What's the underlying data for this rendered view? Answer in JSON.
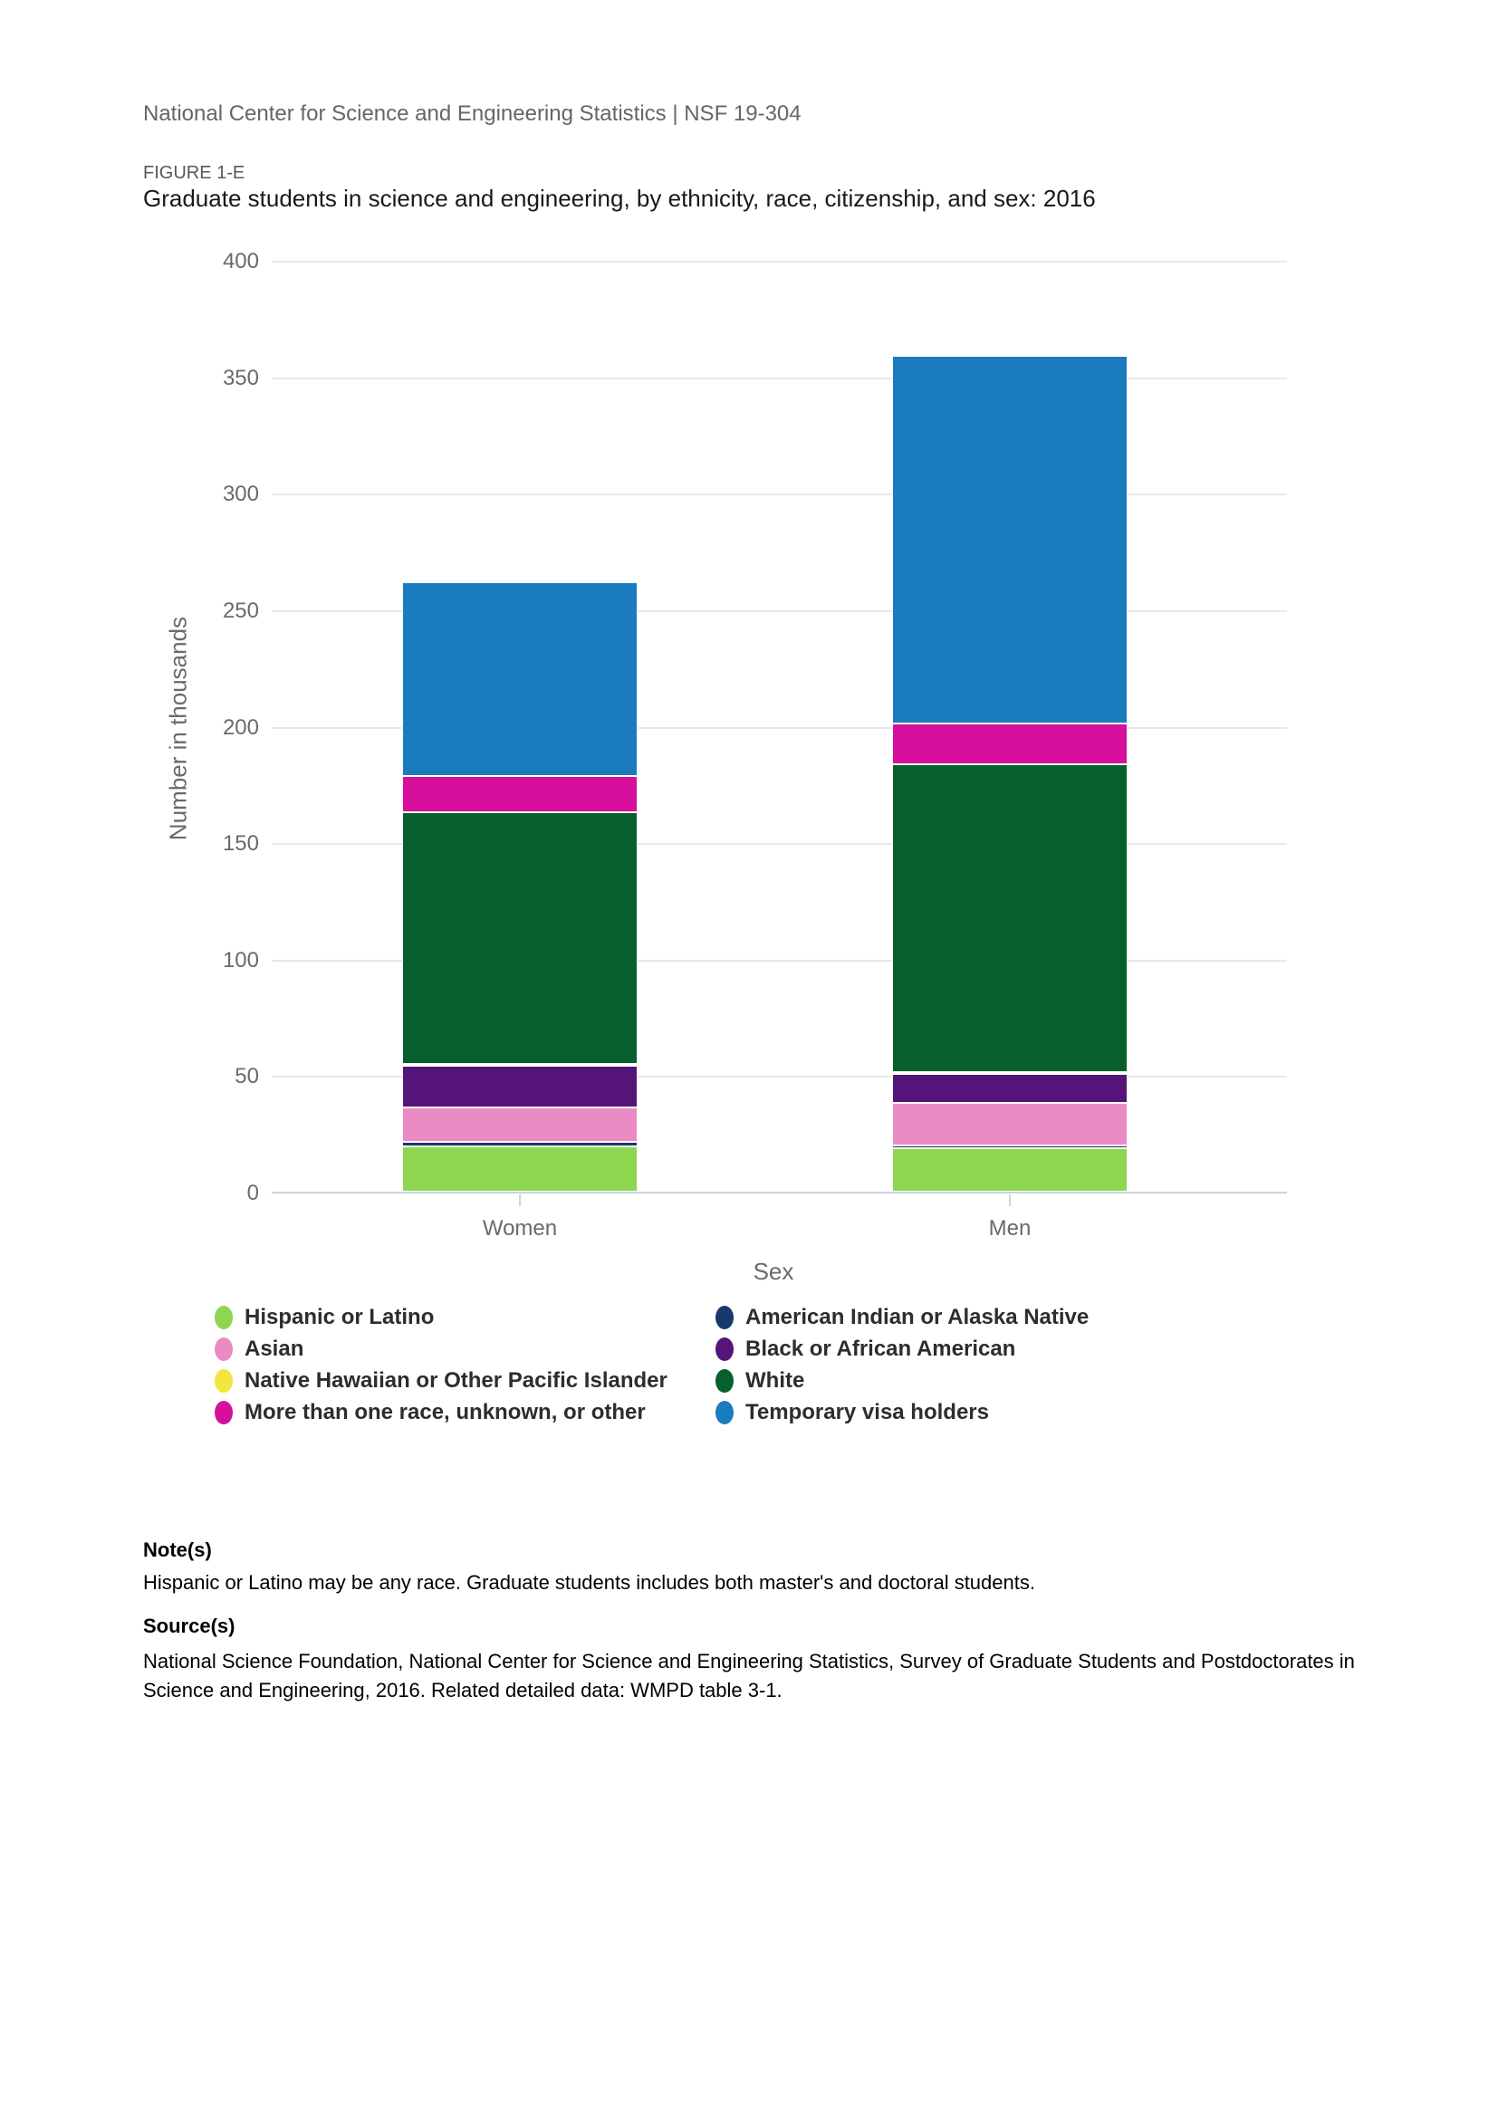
{
  "page": {
    "header": "National Center for Science and Engineering Statistics  |  NSF 19-304",
    "figure_label": "FIGURE 1-E",
    "figure_title": "Graduate students in science and engineering, by ethnicity, race, citizenship, and sex: 2016"
  },
  "chart_data": {
    "type": "bar",
    "stacked": true,
    "title": "Graduate students in science and engineering, by ethnicity, race, citizenship, and sex: 2016",
    "categories": [
      "Women",
      "Men"
    ],
    "xlabel": "Sex",
    "ylabel": "Number in thousands",
    "units": "thousands",
    "ylim": [
      0,
      400
    ],
    "ytick_step": 50,
    "grid": true,
    "legend_position": "bottom",
    "series": [
      {
        "name": "Hispanic or Latino",
        "color": "#8dd750",
        "values": [
          19.5,
          18.5
        ]
      },
      {
        "name": "American Indian or Alaska Native",
        "color": "#17396b",
        "values": [
          1.7,
          1.2
        ]
      },
      {
        "name": "Asian",
        "color": "#ea8bc5",
        "values": [
          15.0,
          18.5
        ]
      },
      {
        "name": "Black or African American",
        "color": "#551478",
        "values": [
          18.0,
          12.5
        ]
      },
      {
        "name": "Native Hawaiian or Other Pacific Islander",
        "color": "#f3e53e",
        "values": [
          0.4,
          0.4
        ]
      },
      {
        "name": "White",
        "color": "#06602d",
        "values": [
          108.0,
          132.0
        ]
      },
      {
        "name": "More than one race, unknown, or other",
        "color": "#d60f9d",
        "values": [
          15.5,
          17.5
        ]
      },
      {
        "name": "Temporary visa holders",
        "color": "#1a7cbd",
        "values": [
          83.0,
          158.0
        ]
      }
    ]
  },
  "notes": {
    "note_label": "Note(s)",
    "note_text": "Hispanic or Latino may be any race. Graduate students includes both master's and doctoral students.",
    "source_label": "Source(s)",
    "source_text": "National Science Foundation, National Center for Science and Engineering Statistics, Survey of Graduate Students and Postdoctorates in Science and Engineering, 2016. Related detailed data: WMPD table 3-1."
  }
}
